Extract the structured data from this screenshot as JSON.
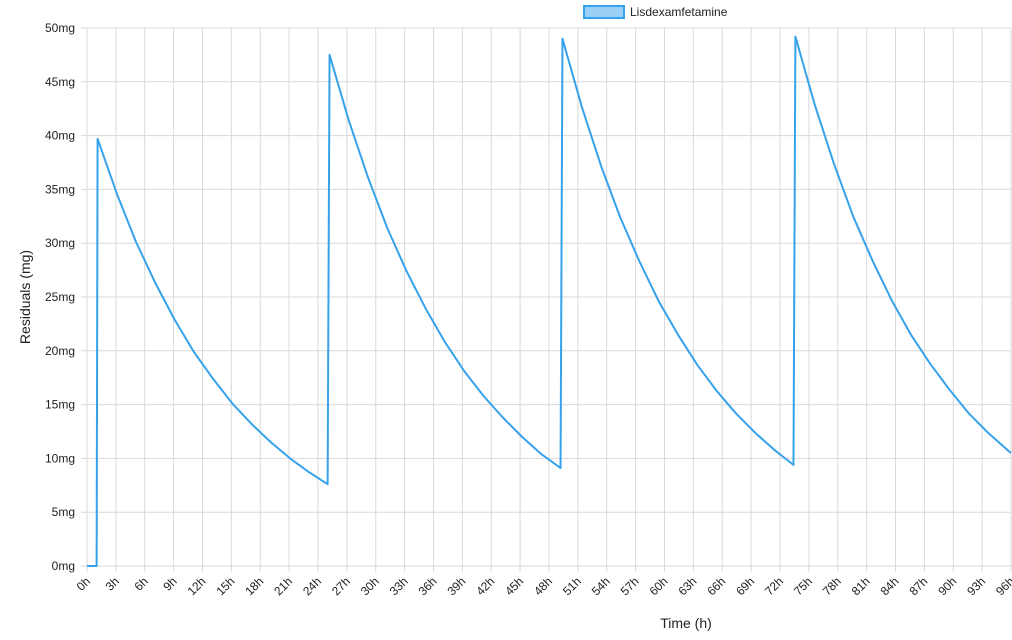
{
  "chart_data": {
    "type": "line",
    "xlabel": "Time (h)",
    "ylabel": "Residuals (mg)",
    "legend": "top",
    "grid": true,
    "xlim": [
      0,
      96
    ],
    "ylim": [
      0,
      50
    ],
    "xticks": [
      {
        "value": 0,
        "label": "0h"
      },
      {
        "value": 3,
        "label": "3h"
      },
      {
        "value": 6,
        "label": "6h"
      },
      {
        "value": 9,
        "label": "9h"
      },
      {
        "value": 12,
        "label": "12h"
      },
      {
        "value": 15,
        "label": "15h"
      },
      {
        "value": 18,
        "label": "18h"
      },
      {
        "value": 21,
        "label": "21h"
      },
      {
        "value": 24,
        "label": "24h"
      },
      {
        "value": 27,
        "label": "27h"
      },
      {
        "value": 30,
        "label": "30h"
      },
      {
        "value": 33,
        "label": "33h"
      },
      {
        "value": 36,
        "label": "36h"
      },
      {
        "value": 39,
        "label": "39h"
      },
      {
        "value": 42,
        "label": "42h"
      },
      {
        "value": 45,
        "label": "45h"
      },
      {
        "value": 48,
        "label": "48h"
      },
      {
        "value": 51,
        "label": "51h"
      },
      {
        "value": 54,
        "label": "54h"
      },
      {
        "value": 57,
        "label": "57h"
      },
      {
        "value": 60,
        "label": "60h"
      },
      {
        "value": 63,
        "label": "63h"
      },
      {
        "value": 66,
        "label": "66h"
      },
      {
        "value": 69,
        "label": "69h"
      },
      {
        "value": 72,
        "label": "72h"
      },
      {
        "value": 75,
        "label": "75h"
      },
      {
        "value": 78,
        "label": "78h"
      },
      {
        "value": 81,
        "label": "81h"
      },
      {
        "value": 84,
        "label": "84h"
      },
      {
        "value": 87,
        "label": "87h"
      },
      {
        "value": 90,
        "label": "90h"
      },
      {
        "value": 93,
        "label": "93h"
      },
      {
        "value": 96,
        "label": "96h"
      }
    ],
    "yticks": [
      {
        "value": 0,
        "label": "0mg"
      },
      {
        "value": 5,
        "label": "5mg"
      },
      {
        "value": 10,
        "label": "10mg"
      },
      {
        "value": 15,
        "label": "15mg"
      },
      {
        "value": 20,
        "label": "20mg"
      },
      {
        "value": 25,
        "label": "25mg"
      },
      {
        "value": 30,
        "label": "30mg"
      },
      {
        "value": 35,
        "label": "35mg"
      },
      {
        "value": 40,
        "label": "40mg"
      },
      {
        "value": 45,
        "label": "45mg"
      },
      {
        "value": 50,
        "label": "50mg"
      }
    ],
    "x": [
      0,
      1,
      1.1,
      3.1,
      5.1,
      7.1,
      9.1,
      11.1,
      13.1,
      15.1,
      17.1,
      19.1,
      21.1,
      23.1,
      25,
      25.2,
      27.2,
      29.2,
      31.2,
      33.2,
      35.2,
      37.2,
      39.2,
      41.2,
      43.2,
      45.2,
      47.2,
      49.2,
      49.4,
      51.4,
      53.4,
      55.4,
      57.4,
      59.4,
      61.4,
      63.4,
      65.4,
      67.4,
      69.4,
      71.4,
      73.4,
      73.6,
      75.6,
      77.6,
      79.6,
      81.6,
      83.6,
      85.6,
      87.6,
      89.6,
      91.6,
      93.6,
      95.6,
      96
    ],
    "series": [
      {
        "name": "Lisdexamfetamine",
        "color": "#36a2eb",
        "values": [
          0,
          0,
          39.7,
          34.6,
          30.1,
          26.3,
          22.9,
          19.9,
          17.4,
          15.1,
          13.2,
          11.5,
          10.0,
          8.7,
          7.6,
          47.5,
          41.4,
          36.1,
          31.4,
          27.4,
          23.9,
          20.8,
          18.1,
          15.8,
          13.8,
          12.0,
          10.4,
          9.1,
          49.0,
          42.7,
          37.2,
          32.4,
          28.3,
          24.6,
          21.5,
          18.7,
          16.3,
          14.2,
          12.4,
          10.8,
          9.4,
          49.2,
          42.9,
          37.4,
          32.5,
          28.4,
          24.7,
          21.5,
          18.8,
          16.4,
          14.2,
          12.4,
          10.8,
          10.5
        ]
      }
    ]
  }
}
